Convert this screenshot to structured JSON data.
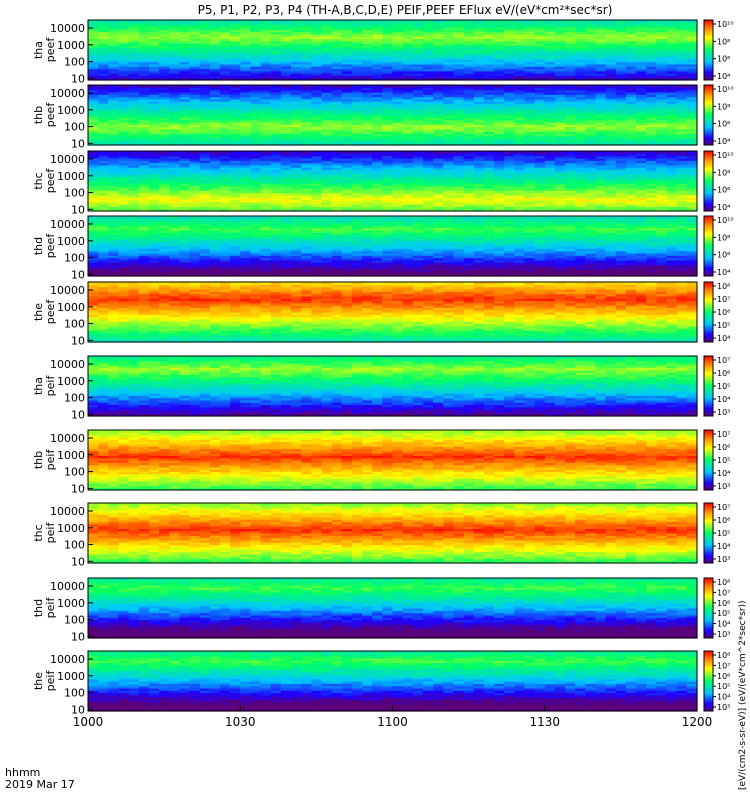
{
  "title": "P5, P1, P2, P3, P4 (TH-A,B,C,D,E) PEIF,PEEF EFlux eV/(eV*cm²*sec*sr)",
  "colorbar_unit_label": "[eV/(cm2-s-sr-eV)] (eV/(eV*cm^2*sec*sr))",
  "time_axis": {
    "label_line1": "hhmm",
    "label_line2": "2019 Mar 17",
    "ticks": [
      "1000",
      "1030",
      "1100",
      "1130",
      "1200"
    ],
    "tick_minutes": [
      600,
      630,
      660,
      690,
      720
    ],
    "range_minutes": [
      600,
      720
    ]
  },
  "chart_data": [
    {
      "type": "heatmap",
      "probe": "tha",
      "product": "peef",
      "ylabel_top": "tha",
      "ylabel_bottom": "peef",
      "y_scale": "log",
      "y_range": [
        8,
        30000
      ],
      "y_ticks": [
        "10000",
        "1000",
        "100",
        "10"
      ],
      "z_scale": "log",
      "cbar_ticks": [
        "10^10",
        "10^8",
        "10^6",
        "10^4"
      ],
      "peak_energy": 3000,
      "peak_color": "yellow-green"
    },
    {
      "type": "heatmap",
      "probe": "thb",
      "product": "peef",
      "ylabel_top": "thb",
      "ylabel_bottom": "peef",
      "y_scale": "log",
      "y_range": [
        8,
        30000
      ],
      "y_ticks": [
        "10000",
        "1000",
        "100",
        "10"
      ],
      "z_scale": "log",
      "cbar_ticks": [
        "10^10",
        "10^8",
        "10^6",
        "10^4"
      ],
      "peak_energy": 100,
      "peak_color": "yellow-green"
    },
    {
      "type": "heatmap",
      "probe": "thc",
      "product": "peef",
      "ylabel_top": "thc",
      "ylabel_bottom": "peef",
      "y_scale": "log",
      "y_range": [
        8,
        30000
      ],
      "y_ticks": [
        "10000",
        "1000",
        "100",
        "10"
      ],
      "z_scale": "log",
      "cbar_ticks": [
        "10^10",
        "10^8",
        "10^6",
        "10^4"
      ],
      "peak_energy": 40,
      "peak_color": "yellow"
    },
    {
      "type": "heatmap",
      "probe": "thd",
      "product": "peef",
      "ylabel_top": "thd",
      "ylabel_bottom": "peef",
      "y_scale": "log",
      "y_range": [
        8,
        30000
      ],
      "y_ticks": [
        "10000",
        "1000",
        "100",
        "10"
      ],
      "z_scale": "log",
      "cbar_ticks": [
        "10^10",
        "10^8",
        "10^6",
        "10^4"
      ],
      "peak_energy": 5000,
      "peak_color": "green"
    },
    {
      "type": "heatmap",
      "probe": "the",
      "product": "peef",
      "ylabel_top": "the",
      "ylabel_bottom": "peef",
      "y_scale": "log",
      "y_range": [
        8,
        30000
      ],
      "y_ticks": [
        "10000",
        "1000",
        "100",
        "10"
      ],
      "z_scale": "log",
      "cbar_ticks": [
        "10^8",
        "10^7",
        "10^6",
        "10^5",
        "10^4"
      ],
      "peak_energy": 3000,
      "peak_color": "red"
    },
    {
      "type": "heatmap",
      "probe": "tha",
      "product": "peif",
      "ylabel_top": "tha",
      "ylabel_bottom": "peif",
      "y_scale": "log",
      "y_range": [
        8,
        30000
      ],
      "y_ticks": [
        "10000",
        "1000",
        "100",
        "10"
      ],
      "z_scale": "log",
      "cbar_ticks": [
        "10^7",
        "10^6",
        "10^5",
        "10^4",
        "10^3"
      ],
      "peak_energy": 5000,
      "peak_color": "yellow-green"
    },
    {
      "type": "heatmap",
      "probe": "thb",
      "product": "peif",
      "ylabel_top": "thb",
      "ylabel_bottom": "peif",
      "y_scale": "log",
      "y_range": [
        8,
        30000
      ],
      "y_ticks": [
        "10000",
        "1000",
        "100",
        "10"
      ],
      "z_scale": "log",
      "cbar_ticks": [
        "10^7",
        "10^6",
        "10^5",
        "10^4",
        "10^3"
      ],
      "peak_energy": 800,
      "peak_color": "red"
    },
    {
      "type": "heatmap",
      "probe": "thc",
      "product": "peif",
      "ylabel_top": "thc",
      "ylabel_bottom": "peif",
      "y_scale": "log",
      "y_range": [
        8,
        30000
      ],
      "y_ticks": [
        "10000",
        "1000",
        "100",
        "10"
      ],
      "z_scale": "log",
      "cbar_ticks": [
        "10^7",
        "10^6",
        "10^5",
        "10^4",
        "10^3"
      ],
      "peak_energy": 800,
      "peak_color": "red"
    },
    {
      "type": "heatmap",
      "probe": "thd",
      "product": "peif",
      "ylabel_top": "thd",
      "ylabel_bottom": "peif",
      "y_scale": "log",
      "y_range": [
        8,
        30000
      ],
      "y_ticks": [
        "10000",
        "1000",
        "100",
        "10"
      ],
      "z_scale": "log",
      "cbar_ticks": [
        "10^8",
        "10^7",
        "10^6",
        "10^5",
        "10^4",
        "10^3"
      ],
      "peak_energy": 8000,
      "peak_color": "green"
    },
    {
      "type": "heatmap",
      "probe": "the",
      "product": "peif",
      "ylabel_top": "the",
      "ylabel_bottom": "peif",
      "y_scale": "log",
      "y_range": [
        8,
        30000
      ],
      "y_ticks": [
        "10000",
        "1000",
        "100",
        "10"
      ],
      "z_scale": "log",
      "cbar_ticks": [
        "10^8",
        "10^7",
        "10^6",
        "10^5",
        "10^4",
        "10^3"
      ],
      "peak_energy": 8000,
      "peak_color": "green"
    }
  ]
}
